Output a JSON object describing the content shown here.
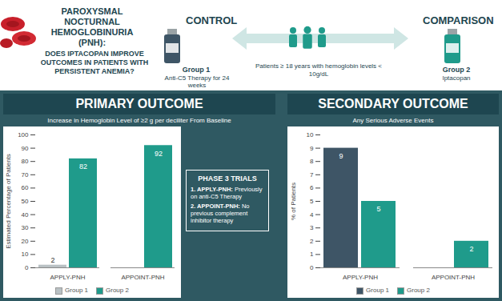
{
  "header": {
    "title": "PAROXYSMAL NOCTURNAL HEMOGLOBINURIA (PNH):",
    "question": "DOES IPTACOPAN IMPROVE OUTCOMES IN PATIENTS WITH PERSISTENT ANEMIA?",
    "control": {
      "heading": "CONTROL",
      "group": "Group 1",
      "treatment": "Anti-C5 Therapy for 24 weeks"
    },
    "population": "Patients ≥ 18 years with hemoglobin levels < 10g/dL",
    "comparison": {
      "heading": "COMPARISON",
      "group": "Group 2",
      "treatment": "Iptacopan"
    }
  },
  "trials_note": {
    "title": "PHASE 3 TRIALS",
    "items": [
      {
        "name": "1. APPLY-PNH:",
        "text": "Previously on anti-C5 Therapy"
      },
      {
        "name": "2. APPOINT-PNH:",
        "text": "No previous complement inhibitor therapy"
      }
    ]
  },
  "chart_data": [
    {
      "type": "bar",
      "title": "PRIMARY OUTCOME",
      "subtitle": "Increase in Hemoglobin Level of ≥2 g per deciliter From Baseline",
      "y_label": "Estimated Percentage of Patients",
      "categories": [
        "APPLY-PNH",
        "APPOINT-PNH"
      ],
      "series": [
        {
          "name": "Group 1",
          "color": "#b9c1c4",
          "values": [
            2,
            null
          ]
        },
        {
          "name": "Group 2",
          "color": "#1f9b8b",
          "values": [
            82,
            92
          ]
        }
      ],
      "ylim": [
        0,
        100
      ],
      "yticks": [
        0,
        10,
        20,
        30,
        40,
        50,
        60,
        70,
        80,
        90,
        100
      ],
      "grid": false,
      "data_labels": true,
      "legend": "bottom"
    },
    {
      "type": "bar",
      "title": "SECONDARY OUTCOME",
      "subtitle": "Any Serious Adverse Events",
      "y_label": "% of Patients",
      "categories": [
        "APPLY-PNH",
        "APPOINT-PNH"
      ],
      "series": [
        {
          "name": "Group 1",
          "color": "#3e5566",
          "values": [
            9,
            null
          ]
        },
        {
          "name": "Group 2",
          "color": "#1f9b8b",
          "values": [
            5,
            2
          ]
        }
      ],
      "ylim": [
        0,
        10
      ],
      "yticks": [
        0,
        1,
        2,
        3,
        4,
        5,
        6,
        7,
        8,
        9,
        10
      ],
      "grid": false,
      "data_labels": true,
      "legend": "bottom"
    }
  ]
}
